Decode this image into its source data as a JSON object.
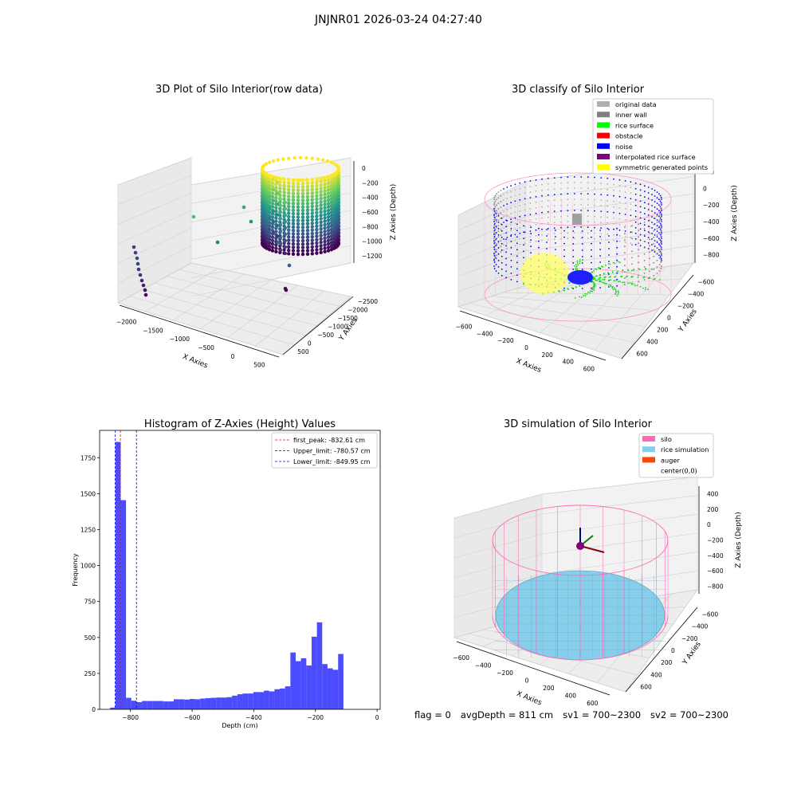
{
  "figure": {
    "suptitle": "JNJNR01 2026-03-24 04:27:40",
    "status": {
      "flag": "flag = 0",
      "avg_depth": "avgDepth = 811 cm",
      "sv1": "sv1 = 700~2300",
      "sv2": "sv2 = 700~2300"
    }
  },
  "chart_data": [
    {
      "type": "scatter",
      "projection": "3d",
      "title": "3D Plot of Silo Interior(row data)",
      "xlabel": "X Axies",
      "ylabel": "Y Axies",
      "zlabel": "Z Axies (Depth)",
      "x_ticks": [
        "−2000",
        "−1500",
        "−1000",
        "−500",
        "0",
        "500"
      ],
      "y_ticks": [
        "500",
        "0",
        "−500",
        "−1000",
        "−1500",
        "−2000",
        "−2500"
      ],
      "z_ticks": [
        "0",
        "−200",
        "−400",
        "−600",
        "−800",
        "−1000",
        "−1200"
      ],
      "colormap": "viridis (by depth)",
      "series": [
        {
          "shape": "cylindrical point cloud",
          "center": [
            0,
            0
          ],
          "radius": 650,
          "z_range": [
            -1200,
            0
          ]
        }
      ],
      "outliers": [
        {
          "x": -2000,
          "y": 0,
          "z": -800
        },
        {
          "x": -2000,
          "y": 0,
          "z": -880
        },
        {
          "x": -2000,
          "y": 0,
          "z": -960
        },
        {
          "x": -2000,
          "y": 0,
          "z": -1040
        },
        {
          "x": -1900,
          "y": 0,
          "z": -1120
        },
        {
          "x": -1900,
          "y": 0,
          "z": -1200
        },
        {
          "x": -1100,
          "y": 300,
          "z": -600
        },
        {
          "x": -700,
          "y": 0,
          "z": -900
        },
        {
          "x": -400,
          "y": 200,
          "z": -500
        },
        {
          "x": -300,
          "y": -200,
          "z": -550
        },
        {
          "x": 200,
          "y": -200,
          "z": -700
        },
        {
          "x": 200,
          "y": 300,
          "z": -1200
        }
      ]
    },
    {
      "type": "scatter",
      "projection": "3d",
      "title": "3D classify of Silo Interior",
      "xlabel": "X Axies",
      "ylabel": "Y Axies",
      "zlabel": "Z Axies (Depth)",
      "x_ticks": [
        "−600",
        "−400",
        "−200",
        "0",
        "200",
        "400",
        "600"
      ],
      "y_ticks": [
        "600",
        "400",
        "200",
        "0",
        "−200",
        "−400",
        "−600"
      ],
      "z_ticks": [
        "200",
        "0",
        "−200",
        "−400",
        "−600",
        "−800"
      ],
      "legend": {
        "position": "upper right",
        "entries": [
          {
            "label": "original data",
            "color": "#b0b0b0"
          },
          {
            "label": "inner wall",
            "color": "#808080"
          },
          {
            "label": "rice surface",
            "color": "#00ff00"
          },
          {
            "label": "obstacle",
            "color": "#ff0000"
          },
          {
            "label": "noise",
            "color": "#0000ff"
          },
          {
            "label": "interpolated rice surface",
            "color": "#800080"
          },
          {
            "label": "symmetric generated points",
            "color": "#ffff00"
          }
        ]
      }
    },
    {
      "type": "bar",
      "title": "Histogram of Z-Axies (Height) Values",
      "xlabel": "Depth (cm)",
      "ylabel": "Frequency",
      "xlim": [
        -900,
        10
      ],
      "ylim": [
        0,
        1940
      ],
      "x_ticks": [
        "−800",
        "−600",
        "−400",
        "−200",
        "0"
      ],
      "y_ticks": [
        "0",
        "250",
        "500",
        "750",
        "1000",
        "1250",
        "1500",
        "1750"
      ],
      "bar_color": "#0000ff",
      "bin_width": 17.2,
      "bin_start": -866,
      "values": [
        12,
        1860,
        1455,
        80,
        60,
        50,
        58,
        58,
        58,
        58,
        55,
        55,
        70,
        70,
        68,
        72,
        70,
        75,
        78,
        80,
        82,
        82,
        85,
        95,
        105,
        110,
        110,
        120,
        120,
        130,
        125,
        140,
        145,
        160,
        395,
        335,
        355,
        305,
        505,
        605,
        315,
        285,
        275,
        385
      ],
      "reference_lines": [
        {
          "label": "first_peak: -832.61 cm",
          "value": -832.61,
          "color": "#ff0000"
        },
        {
          "label": "Upper_limit: -780.57 cm",
          "value": -780.57,
          "color": "#0000ff"
        },
        {
          "label": "Lower_limit: -849.95 cm",
          "value": -849.95,
          "color": "#0000ff"
        }
      ]
    },
    {
      "type": "scatter",
      "projection": "3d",
      "title": "3D simulation of Silo Interior",
      "xlabel": "X Axies",
      "ylabel": "Y Axies",
      "zlabel": "Z Axies (Depth)",
      "x_ticks": [
        "−600",
        "−400",
        "−200",
        "0",
        "200",
        "400",
        "600"
      ],
      "y_ticks": [
        "600",
        "400",
        "200",
        "0",
        "−200",
        "−400",
        "−600"
      ],
      "z_ticks": [
        "400",
        "200",
        "0",
        "−200",
        "−400",
        "−600",
        "−800"
      ],
      "legend": {
        "position": "upper right",
        "entries": [
          {
            "label": "silo",
            "color": "#ff69b4"
          },
          {
            "label": "rice simulation",
            "color": "#87ceeb"
          },
          {
            "label": "auger",
            "color": "#ff4500"
          },
          {
            "label": "center(0,0)",
            "color": "#ffffff"
          }
        ]
      }
    }
  ]
}
